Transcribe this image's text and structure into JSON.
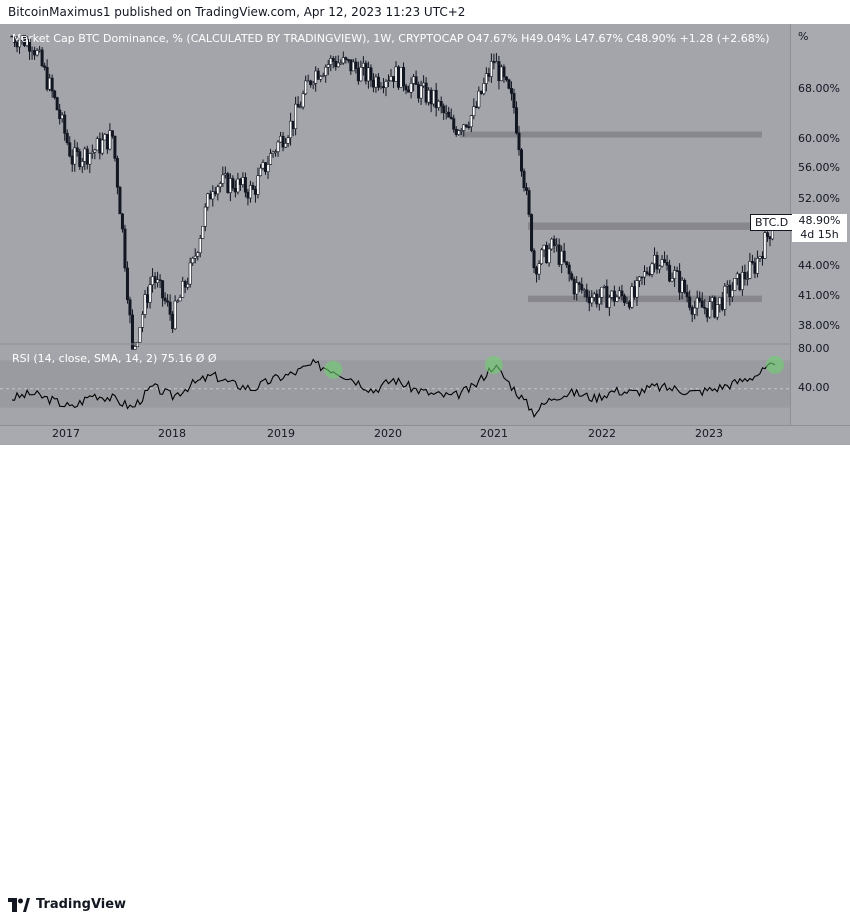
{
  "header": {
    "publisher_text": "BitcoinMaximus1 published on TradingView.com, Apr 12, 2023 11:23 UTC+2"
  },
  "legend": {
    "title": "Market Cap BTC Dominance, % (CALCULATED BY TRADINGVIEW), 1W, CRYPTOCAP",
    "o_label": "O",
    "o_val": "47.67%",
    "h_label": "H",
    "h_val": "49.04%",
    "l_label": "L",
    "l_val": "47.67%",
    "c_label": "C",
    "c_val": "48.90%",
    "change": "+1.28 (+2.68%)"
  },
  "rsi_legend": {
    "label": "RSI (14, close, SMA, 14, 2)",
    "value": "75.16",
    "s1": "Ø",
    "s2": "Ø"
  },
  "axis": {
    "unit": "%",
    "y_ticks": [
      "68.00%",
      "60.00%",
      "56.00%",
      "52.00%",
      "48.00%",
      "44.00%",
      "41.00%",
      "38.00%"
    ],
    "rsi_ticks": [
      "80.00",
      "40.00"
    ],
    "x_ticks": [
      "2017",
      "2018",
      "2019",
      "2020",
      "2021",
      "2022",
      "2023"
    ]
  },
  "badge": {
    "symbol": "BTC.D",
    "price": "48.90%",
    "countdown": "4d 15h"
  },
  "footer": {
    "brand": "TradingView"
  },
  "colors": {
    "background": "#a4a5ab",
    "candle": "#131722",
    "band": "#7a7b80",
    "rsi_line": "#000000",
    "rsi_highlight": "#6fd16f"
  },
  "chart_data": [
    {
      "type": "candlestick",
      "title": "Market Cap BTC Dominance, % (CALCULATED BY TRADINGVIEW), 1W, CRYPTOCAP",
      "x": [
        "2017-01",
        "2017-03",
        "2017-05",
        "2017-07",
        "2017-09",
        "2017-11",
        "2018-01",
        "2018-03",
        "2018-05",
        "2018-07",
        "2018-09",
        "2018-11",
        "2019-01",
        "2019-03",
        "2019-05",
        "2019-07",
        "2019-09",
        "2019-11",
        "2020-01",
        "2020-03",
        "2020-05",
        "2020-07",
        "2020-09",
        "2020-11",
        "2021-01",
        "2021-03",
        "2021-05",
        "2021-07",
        "2021-09",
        "2021-11",
        "2022-01",
        "2022-03",
        "2022-05",
        "2022-07",
        "2022-09",
        "2022-11",
        "2023-01",
        "2023-03",
        "2023-04"
      ],
      "close": [
        74,
        73,
        65,
        56,
        57,
        59,
        36,
        43,
        39,
        44,
        53,
        53,
        52,
        57,
        61,
        68,
        70,
        69,
        67,
        68,
        66,
        64,
        60,
        62,
        70,
        63,
        44,
        46,
        42,
        41,
        41,
        41,
        45,
        43,
        40,
        40,
        42,
        44,
        48.9
      ],
      "ylim": [
        37,
        74
      ],
      "y_scale": "log",
      "support_zone": [
        40.5,
        41.1
      ],
      "resistance_zone": [
        47.7,
        48.5
      ],
      "upper_zone": [
        58.8,
        59.6
      ]
    },
    {
      "type": "line",
      "title": "RSI (14, close, SMA, 14, 2)",
      "x": [
        "2017-01",
        "2017-03",
        "2017-05",
        "2017-07",
        "2017-09",
        "2017-11",
        "2018-01",
        "2018-03",
        "2018-05",
        "2018-07",
        "2018-09",
        "2018-11",
        "2019-01",
        "2019-03",
        "2019-05",
        "2019-07",
        "2019-09",
        "2019-11",
        "2020-01",
        "2020-03",
        "2020-05",
        "2020-07",
        "2020-09",
        "2020-11",
        "2021-01",
        "2021-03",
        "2021-05",
        "2021-07",
        "2021-09",
        "2021-11",
        "2022-01",
        "2022-03",
        "2022-05",
        "2022-07",
        "2022-09",
        "2022-11",
        "2023-01",
        "2023-03",
        "2023-04"
      ],
      "values": [
        40,
        45,
        38,
        30,
        44,
        40,
        30,
        52,
        42,
        55,
        64,
        55,
        50,
        60,
        66,
        76,
        70,
        60,
        48,
        60,
        50,
        44,
        42,
        52,
        75,
        50,
        25,
        42,
        46,
        40,
        48,
        46,
        52,
        50,
        46,
        50,
        56,
        64,
        75.16
      ],
      "ylim": [
        15,
        95
      ],
      "highlight_level": 80,
      "mid_level": 50
    }
  ]
}
